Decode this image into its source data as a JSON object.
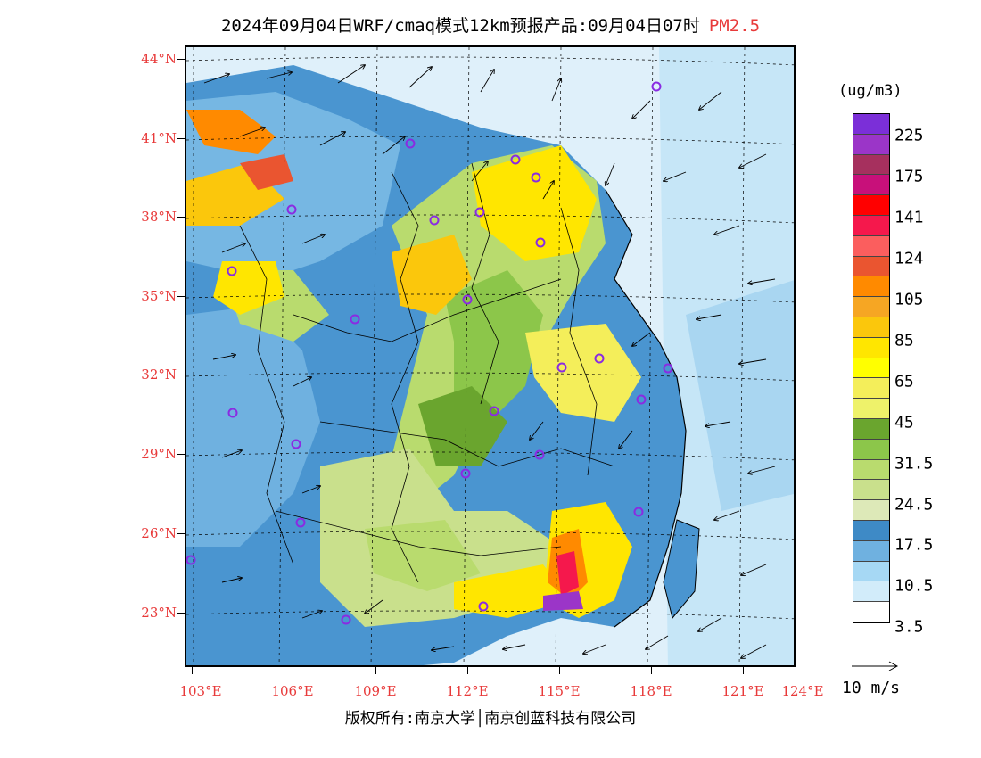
{
  "title": {
    "main": "2024年09月04日WRF/cmaq模式12km预报产品:09月04日07时",
    "pollutant": "PM2.5"
  },
  "axes": {
    "y_labels": [
      "44°N",
      "41°N",
      "38°N",
      "35°N",
      "32°N",
      "29°N",
      "26°N",
      "23°N"
    ],
    "x_labels": [
      "103°E",
      "106°E",
      "109°E",
      "112°E",
      "115°E",
      "118°E",
      "121°E",
      "124°E"
    ]
  },
  "colorbar": {
    "unit": "(ug/m3)",
    "colors": [
      "#7b2fd8",
      "#9b35c8",
      "#a6305e",
      "#c8107a",
      "#ff0000",
      "#f5184c",
      "#fb5e5e",
      "#ea5530",
      "#ff8a00",
      "#f6a623",
      "#fbc70c",
      "#ffe600",
      "#ffff00",
      "#f4ee5a",
      "#eef26a",
      "#6aa52e",
      "#8cc64a",
      "#b9db6e",
      "#c9e08c",
      "#dde9b8",
      "#3e8ac6",
      "#6fb1e0",
      "#a6d8f4",
      "#d2ecfa",
      "#ffffff"
    ],
    "labels": [
      "225",
      "175",
      "141",
      "124",
      "105",
      "85",
      "65",
      "45",
      "31.5",
      "24.5",
      "17.5",
      "10.5",
      "3.5"
    ]
  },
  "wind_reference": "10 m/s",
  "copyright": "版权所有:南京大学│南京创蓝科技有限公司",
  "city_marker_color": "#8a2be2"
}
